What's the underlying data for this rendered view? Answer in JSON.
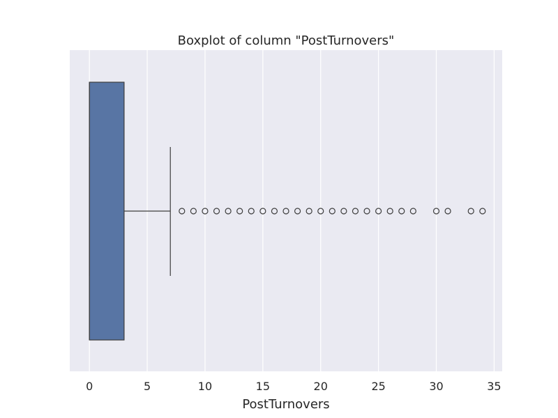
{
  "chart_data": {
    "type": "boxplot",
    "orientation": "horizontal",
    "title": "Boxplot of column \"PostTurnovers\"",
    "xlabel": "PostTurnovers",
    "ylabel": "",
    "xlim": [
      -1.7,
      35.7
    ],
    "xticks": [
      0,
      5,
      10,
      15,
      20,
      25,
      30,
      35
    ],
    "grid": true,
    "background_color": "#EAEAF2",
    "grid_color": "#FFFFFF",
    "box_color": "#5875A4",
    "line_color": "#3D3D3D",
    "series": [
      {
        "min": 0,
        "q1": 0,
        "median": 0,
        "q3": 3,
        "whisker_low": 0,
        "whisker_high": 7,
        "outliers": [
          8,
          9,
          10,
          11,
          12,
          13,
          14,
          15,
          16,
          17,
          18,
          19,
          20,
          21,
          22,
          23,
          24,
          25,
          26,
          27,
          28,
          30,
          31,
          33,
          34
        ]
      }
    ]
  }
}
